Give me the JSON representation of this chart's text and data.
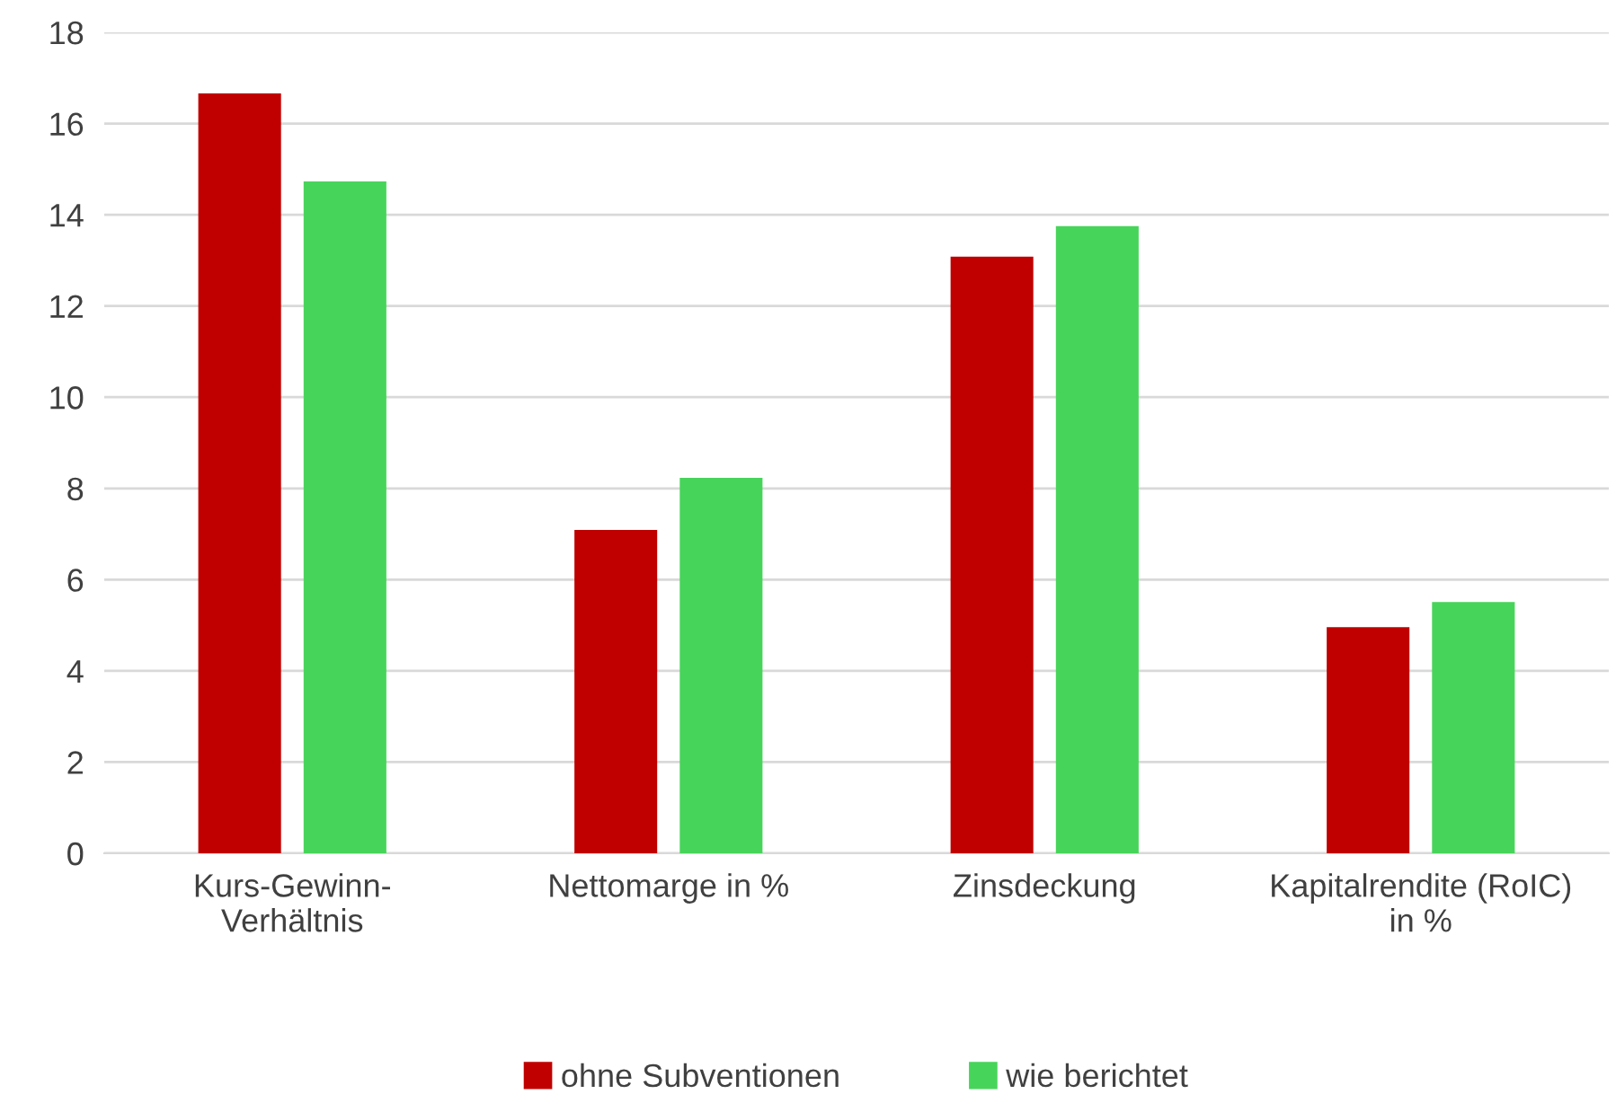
{
  "chart_data": {
    "type": "bar",
    "categories": [
      "Kurs-Gewinn-\nVerhältnis",
      "Nettomarge in %",
      "Zinsdeckung",
      "Kapitalrendite (RoIC)\nin %"
    ],
    "series": [
      {
        "name": "ohne Subventionen",
        "color": "#c00000",
        "values": [
          16.66,
          7.09,
          13.08,
          4.96
        ]
      },
      {
        "name": "wie berichtet",
        "color": "#47d45a",
        "values": [
          14.73,
          8.23,
          13.75,
          5.51
        ]
      }
    ],
    "ylim": [
      0,
      18
    ],
    "yticks": [
      0,
      2,
      4,
      6,
      8,
      10,
      12,
      14,
      16,
      18
    ],
    "grid": "y",
    "legend": "bottom"
  }
}
